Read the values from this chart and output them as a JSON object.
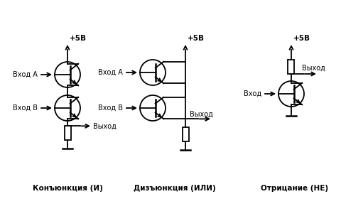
{
  "bg_color": "#ffffff",
  "fg_color": "#000000",
  "labels": {
    "and_title": "Конъюнкция (И)",
    "or_title": "Дизъюнкция (ИЛИ)",
    "not_title": "Отрицание (НЕ)",
    "and_vcc": "+5В",
    "or_vcc": "+5В",
    "not_vcc": "+5В",
    "and_inA": "Вход А",
    "and_inB": "Вход В",
    "and_out": "Выход",
    "or_inA": "Вход А",
    "or_inB": "Вход В",
    "or_out": "Выход",
    "not_in": "Вход",
    "not_out": "Выход"
  }
}
